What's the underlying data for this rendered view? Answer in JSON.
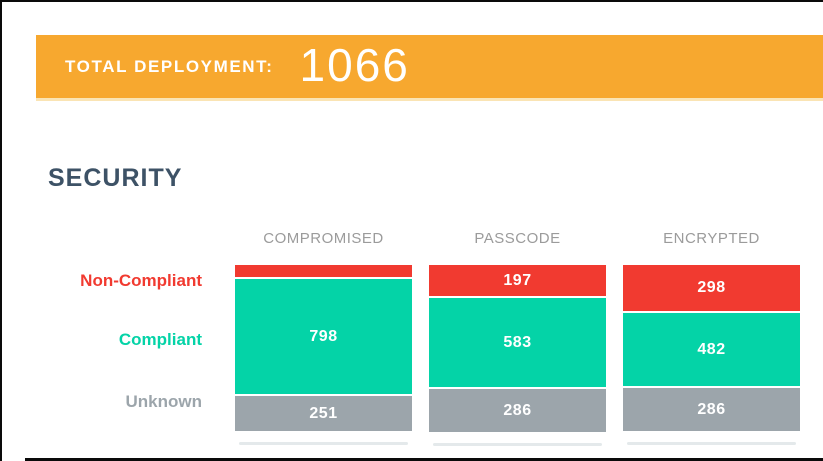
{
  "banner": {
    "label": "TOTAL DEPLOYMENT:",
    "value": "1066",
    "bg_color": "#F7A82F"
  },
  "section": {
    "title": "SECURITY"
  },
  "chart_data": {
    "type": "bar",
    "stacked": true,
    "orientation": "vertical",
    "value_labels": "inside-white",
    "categories": [
      "COMPROMISED",
      "PASSCODE",
      "ENCRYPTED"
    ],
    "series": [
      {
        "name": "Non-Compliant",
        "color": "#F13A30",
        "values": [
          null,
          197,
          298
        ]
      },
      {
        "name": "Compliant",
        "color": "#04D3A7",
        "values": [
          798,
          583,
          482
        ]
      },
      {
        "name": "Unknown",
        "color": "#9CA5AB",
        "values": [
          251,
          286,
          286
        ]
      }
    ],
    "total_per_category": 1066,
    "category_header_color": "#9B9B9B",
    "row_labels_position": "left"
  }
}
